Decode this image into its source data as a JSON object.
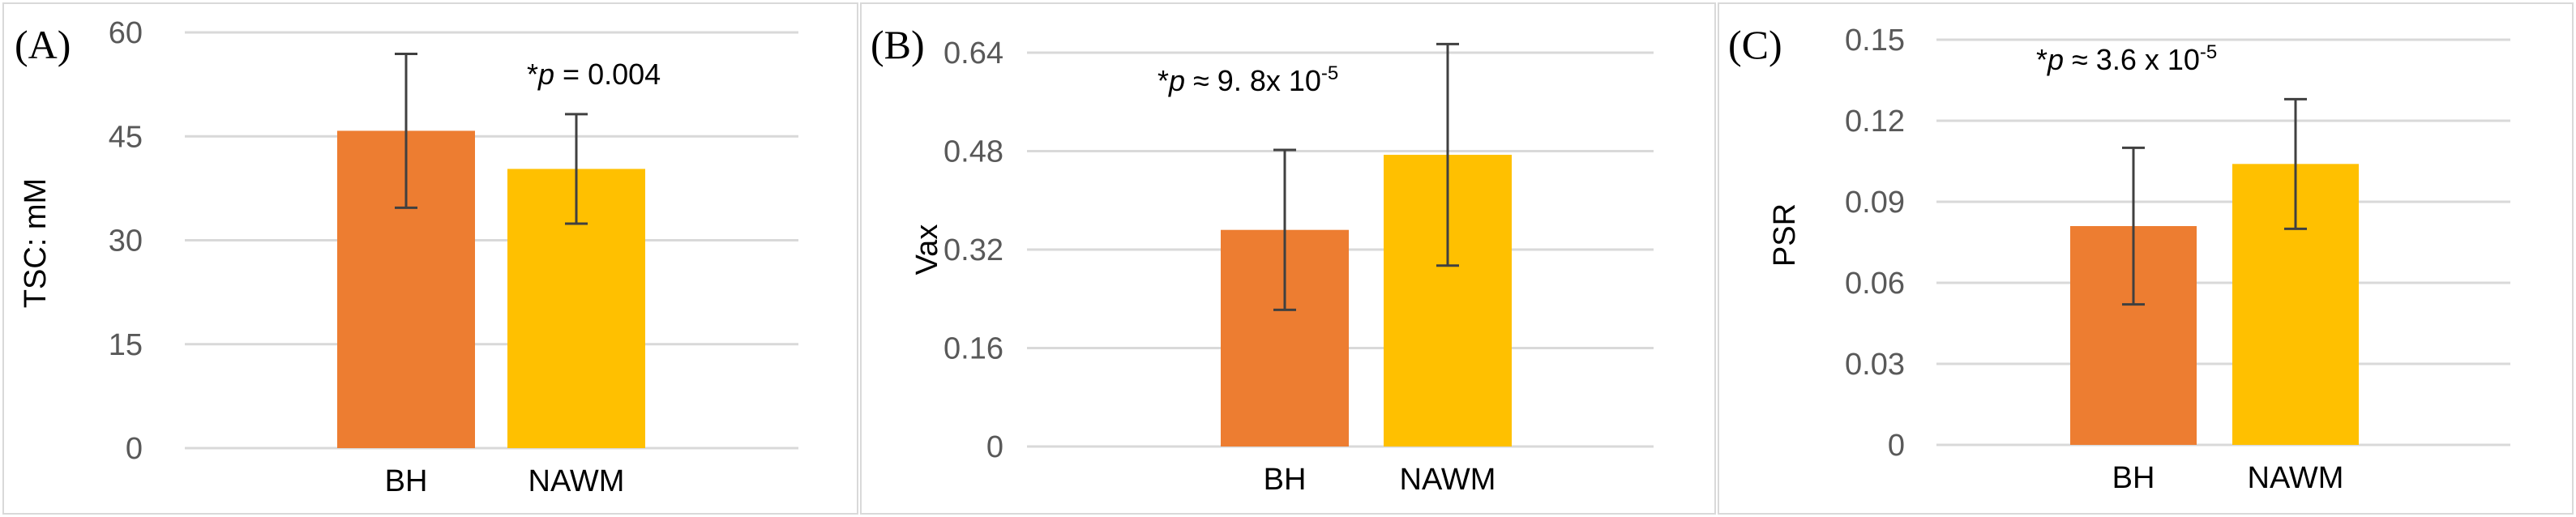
{
  "chart_data": [
    {
      "type": "bar",
      "panel_label": "(A)",
      "categories": [
        "BH",
        "NAWM"
      ],
      "values": [
        45.8,
        40.3
      ],
      "error": [
        11.1,
        7.9
      ],
      "colors": [
        "#ED7D31",
        "#FFC000"
      ],
      "ylabel": "TSC: mM",
      "ylim": [
        0,
        60
      ],
      "yticks": [
        "0",
        "15",
        "30",
        "45",
        "60"
      ],
      "annotation": {
        "star": "*",
        "p": "p",
        "text": " = 0.004",
        "sup": ""
      },
      "grid": true
    },
    {
      "type": "bar",
      "panel_label": "(B)",
      "categories": [
        "BH",
        "NAWM"
      ],
      "values": [
        0.352,
        0.474
      ],
      "error": [
        0.13,
        0.18
      ],
      "colors": [
        "#ED7D31",
        "#FFC000"
      ],
      "ylabel": "Vax",
      "ylim": [
        0,
        0.64
      ],
      "yticks": [
        "0",
        "0.16",
        "0.32",
        "0.48",
        "0.64"
      ],
      "annotation": {
        "star": "*",
        "p": "p",
        "text": " ≈ 9. 8x 10",
        "sup": "-5"
      },
      "grid": true
    },
    {
      "type": "bar",
      "panel_label": "(C)",
      "categories": [
        "BH",
        "NAWM"
      ],
      "values": [
        0.081,
        0.104
      ],
      "error": [
        0.029,
        0.024
      ],
      "colors": [
        "#ED7D31",
        "#FFC000"
      ],
      "ylabel": "PSR",
      "ylim": [
        0,
        0.15
      ],
      "yticks": [
        "0",
        "0.03",
        "0.06",
        "0.09",
        "0.12",
        "0.15"
      ],
      "annotation": {
        "star": "*",
        "p": "p",
        "text": " ≈ 3.6 x 10",
        "sup": "-5"
      },
      "grid": true
    }
  ]
}
